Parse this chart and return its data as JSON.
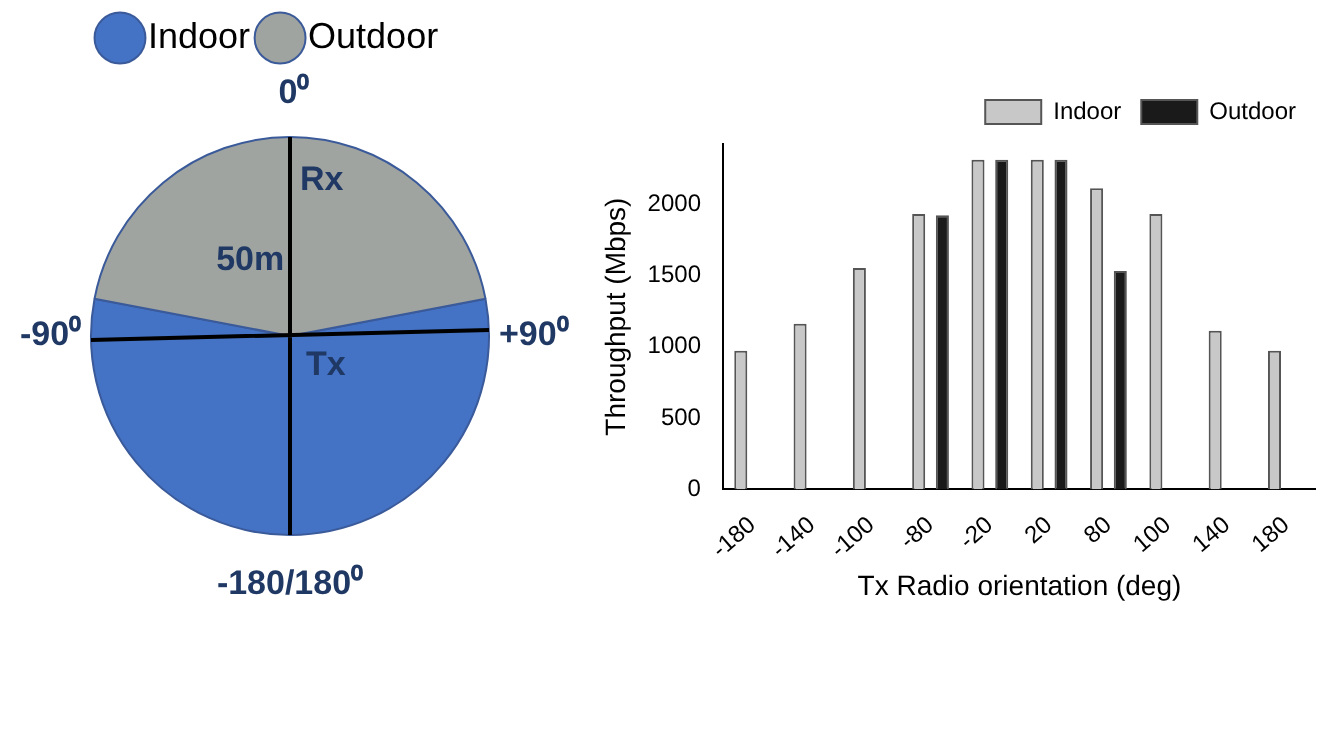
{
  "chart_data": [
    {
      "type": "pie",
      "categories": [
        "Indoor",
        "Outdoor"
      ],
      "values": [
        56,
        44
      ],
      "colors": [
        "#4472c4",
        "#a0a4a0"
      ],
      "legend": "top left",
      "annotations": [
        "0⁰",
        "Rx",
        "50m",
        "+90⁰",
        "-90⁰",
        "Tx",
        "-180/180⁰"
      ]
    },
    {
      "type": "bar",
      "categories": [
        "-180",
        "-140",
        "-100",
        "-80",
        "-20",
        "20",
        "80",
        "100",
        "140",
        "180"
      ],
      "series": [
        {
          "name": "Indoor",
          "color": "#c8c8c8",
          "values": [
            970,
            1160,
            1550,
            1930,
            2310,
            2310,
            2110,
            1930,
            1110,
            970
          ]
        },
        {
          "name": "Outdoor",
          "color": "#1a1a1a",
          "values": [
            0,
            0,
            0,
            1920,
            2310,
            2310,
            1530,
            0,
            0,
            0
          ]
        }
      ],
      "xlabel": "Tx Radio orientation (deg)",
      "ylabel": "Throughput (Mbps)",
      "ylim": [
        0,
        2420
      ],
      "yticks": [
        0,
        500,
        1000,
        1500,
        2000
      ],
      "grid": false,
      "legend": "top right"
    }
  ]
}
